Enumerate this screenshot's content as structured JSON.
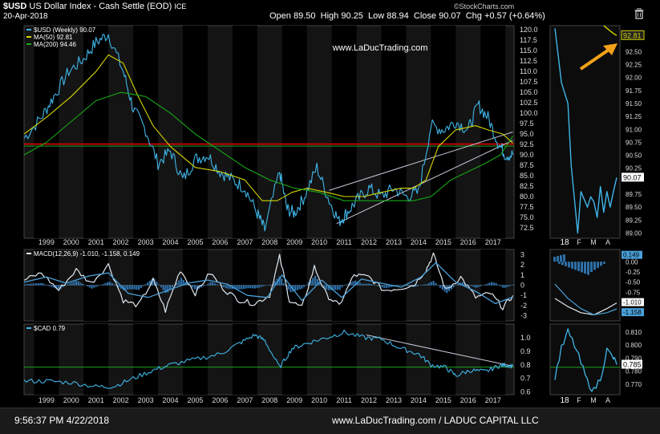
{
  "header": {
    "symbol": "$USD",
    "name": "US Dollar Index - Cash Settle (EOD)",
    "exchange": "ICE",
    "date": "20-Apr-2018",
    "open_label": "Open",
    "open": "89.50",
    "high_label": "High",
    "high": "90.25",
    "low_label": "Low",
    "low": "88.94",
    "close_label": "Close",
    "close": "90.07",
    "chg_label": "Chg",
    "chg": "+0.57 (+0.64%)",
    "source": "©StockCharts.com",
    "watermark": "www.LaDucTrading.com"
  },
  "legend": {
    "price": "$USD (Weekly) 90.07",
    "ma50": "MA(50) 92.81",
    "ma200": "MA(200) 94.46",
    "macd": "MACD(12,26,9) -1.010, -1.158, 0.149",
    "cad": "$CAD 0.79"
  },
  "footer": {
    "timestamp": "9:56:37 PM 4/22/2018",
    "credit": "www.LaDucTrading.com / LADUC CAPITAL LLC"
  },
  "colors": {
    "price": "#3fb6e8",
    "ma50": "#d6d600",
    "ma200": "#18a818",
    "resistance": "#e00000",
    "support": "#1fa01f",
    "trendline": "#c8c8d8",
    "arrow": "#f2a219"
  },
  "chart_data": [
    {
      "type": "line",
      "panel": "main-price",
      "years": [
        "1999",
        "2000",
        "2001",
        "2002",
        "2003",
        "2004",
        "2005",
        "2006",
        "2007",
        "2008",
        "2009",
        "2010",
        "2011",
        "2012",
        "2013",
        "2014",
        "2015",
        "2016",
        "2017",
        "2018"
      ],
      "y_ticks": [
        "120.0",
        "117.5",
        "115.0",
        "112.5",
        "110.0",
        "107.5",
        "105.0",
        "102.5",
        "100.0",
        "97.5",
        "95.0",
        "92.5",
        "90.0",
        "87.5",
        "85.0",
        "82.5",
        "80.0",
        "77.5",
        "75.0",
        "72.5"
      ],
      "ylim": [
        70,
        121
      ],
      "series": [
        {
          "name": "$USD (Weekly) 90.07",
          "x": [
            1998.6,
            1999.3,
            1999.8,
            2000.4,
            2001.0,
            2001.5,
            2002.0,
            2002.6,
            2003.0,
            2003.5,
            2004.0,
            2004.5,
            2005.0,
            2005.5,
            2006.0,
            2006.5,
            2007.0,
            2007.5,
            2008.0,
            2008.3,
            2008.9,
            2009.2,
            2009.5,
            2009.9,
            2010.4,
            2010.9,
            2011.3,
            2011.6,
            2012.0,
            2012.5,
            2013.0,
            2013.5,
            2014.0,
            2014.5,
            2015.0,
            2015.5,
            2016.0,
            2016.5,
            2016.9,
            2017.3,
            2017.7,
            2018.0,
            2018.3
          ],
          "y": [
            94,
            99,
            104,
            110,
            113,
            117,
            119,
            110,
            101,
            96,
            88,
            91,
            84,
            89,
            90,
            86,
            84,
            82,
            76,
            72,
            86,
            77,
            76,
            80,
            87,
            79,
            74,
            76,
            79,
            82,
            80,
            82,
            80,
            81,
            97,
            96,
            98,
            96,
            102,
            99,
            93,
            90,
            90
          ]
        },
        {
          "name": "MA(50) 92.81",
          "x": [
            1998.6,
            1999.5,
            2000.5,
            2001.5,
            2002.0,
            2002.6,
            2003.2,
            2003.8,
            2004.5,
            2005.5,
            2006.5,
            2007.5,
            2008.2,
            2008.8,
            2009.4,
            2010.0,
            2010.8,
            2011.5,
            2012.3,
            2013.0,
            2013.8,
            2014.3,
            2014.8,
            2015.3,
            2016.0,
            2016.8,
            2017.3,
            2017.9,
            2018.3
          ],
          "y": [
            95,
            99,
            104,
            110,
            114,
            112,
            104,
            97,
            92,
            87,
            86,
            84,
            79,
            79,
            81,
            82,
            81,
            80,
            80,
            81,
            82,
            82,
            84,
            92,
            96,
            97,
            96,
            95,
            92.8
          ]
        },
        {
          "name": "MA(200) 94.46",
          "x": [
            1998.6,
            1999.5,
            2000.5,
            2001.5,
            2002.5,
            2003.5,
            2004.5,
            2005.5,
            2006.5,
            2007.5,
            2008.5,
            2009.5,
            2010.5,
            2011.5,
            2012.5,
            2013.5,
            2014.3,
            2015.0,
            2015.8,
            2016.5,
            2017.2,
            2017.8,
            2018.3
          ],
          "y": [
            90,
            93,
            98,
            103,
            105,
            104,
            100,
            95,
            91,
            87,
            84,
            82,
            81,
            79,
            79,
            79,
            79,
            80,
            84,
            86,
            88,
            90,
            94.5
          ]
        }
      ],
      "annotations": [
        "www.LaDucTrading.com"
      ]
    },
    {
      "type": "line",
      "panel": "zoom-price",
      "x_ticks": [
        "18",
        "F",
        "M",
        "A"
      ],
      "y_ticks": [
        "92.81",
        "92.50",
        "92.25",
        "92.00",
        "91.75",
        "91.50",
        "91.25",
        "91.00",
        "90.75",
        "90.50",
        "90.25",
        "90.07",
        "89.75",
        "89.50",
        "89.25",
        "89.00"
      ],
      "ylim": [
        88.9,
        93.0
      ],
      "series": [
        {
          "name": "$USD",
          "x": [
            0,
            2,
            4,
            5,
            7,
            8,
            10,
            11,
            12,
            13,
            14,
            15,
            16,
            17,
            18,
            19
          ],
          "y": [
            92.95,
            91.9,
            91.5,
            90.3,
            89.0,
            89.8,
            89.5,
            89.7,
            89.6,
            89.3,
            89.9,
            89.4,
            89.8,
            89.5,
            89.8,
            90.07
          ]
        },
        {
          "name": "MA(50)",
          "x": [
            15,
            16,
            17,
            18,
            19
          ],
          "y": [
            93.0,
            92.95,
            92.9,
            92.85,
            92.81
          ]
        }
      ]
    },
    {
      "type": "line",
      "panel": "macd",
      "y_ticks": [
        "3",
        "2",
        "1",
        "0",
        "-1",
        "-2",
        "-3"
      ],
      "ylim": [
        -3.5,
        3.5
      ],
      "series": [
        {
          "name": "MACD",
          "x": [
            1998.6,
            1999.3,
            2000.0,
            2000.7,
            2001.3,
            2002.0,
            2002.6,
            2003.2,
            2003.8,
            2004.3,
            2004.9,
            2005.5,
            2006.1,
            2006.7,
            2007.3,
            2007.9,
            2008.5,
            2008.9,
            2009.3,
            2009.8,
            2010.3,
            2010.8,
            2011.3,
            2011.9,
            2012.5,
            2013.1,
            2013.7,
            2014.3,
            2014.8,
            2015.1,
            2015.6,
            2016.2,
            2016.8,
            2017.4,
            2017.9,
            2018.3
          ],
          "y": [
            0.5,
            1.2,
            -0.5,
            1.5,
            0.2,
            2.0,
            -1.5,
            -2.0,
            0.5,
            -2.5,
            1.5,
            -0.8,
            1.2,
            -0.5,
            -1.5,
            -1.8,
            -1.0,
            2.8,
            -1.5,
            -2.2,
            1.8,
            -1.0,
            -2.0,
            1.0,
            0.8,
            -0.5,
            -0.3,
            0.0,
            1.5,
            3.0,
            -0.5,
            0.8,
            -1.2,
            -0.8,
            -2.2,
            -1.01
          ]
        },
        {
          "name": "Signal",
          "x": [
            1998.6,
            1999.5,
            2000.3,
            2001.2,
            2002.0,
            2002.8,
            2003.6,
            2004.4,
            2005.2,
            2006.0,
            2006.8,
            2007.6,
            2008.4,
            2009.0,
            2009.8,
            2010.6,
            2011.4,
            2012.2,
            2013.0,
            2013.8,
            2014.6,
            2015.2,
            2016.0,
            2016.8,
            2017.6,
            2018.3
          ],
          "y": [
            0.3,
            0.8,
            0.2,
            0.9,
            1.2,
            -0.8,
            -1.2,
            -0.5,
            0.2,
            0.5,
            0.1,
            -1.0,
            -1.2,
            1.0,
            -1.5,
            0.5,
            -1.2,
            0.6,
            0.2,
            -0.2,
            0.8,
            2.2,
            0.3,
            -0.6,
            -1.8,
            -1.158
          ]
        }
      ]
    },
    {
      "type": "line",
      "panel": "cad",
      "y_ticks": [
        "1.0",
        "0.9",
        "0.8",
        "0.7",
        "0.6"
      ],
      "ylim": [
        0.58,
        1.1
      ],
      "series": [
        {
          "name": "$CAD 0.79",
          "x": [
            1998.6,
            1999.5,
            2000.5,
            2001.5,
            2002.2,
            2003.0,
            2003.8,
            2004.5,
            2005.5,
            2006.5,
            2007.3,
            2007.9,
            2008.3,
            2008.9,
            2009.4,
            2010.0,
            2010.8,
            2011.5,
            2012.3,
            2013.0,
            2013.8,
            2014.5,
            2015.0,
            2015.6,
            2016.0,
            2016.6,
            2017.2,
            2017.7,
            2018.0,
            2018.3
          ],
          "y": [
            0.68,
            0.68,
            0.67,
            0.64,
            0.64,
            0.7,
            0.76,
            0.8,
            0.84,
            0.88,
            0.96,
            1.02,
            0.98,
            0.78,
            0.92,
            0.96,
            1.0,
            1.04,
            1.0,
            0.99,
            0.92,
            0.88,
            0.8,
            0.78,
            0.72,
            0.76,
            0.75,
            0.79,
            0.8,
            0.79
          ]
        }
      ]
    },
    {
      "type": "line",
      "panel": "zoom-macd",
      "y_ticks": [
        "0.149",
        "0.00",
        "-0.25",
        "-0.50",
        "-0.75",
        "-1.010",
        "-1.158"
      ],
      "series": [
        {
          "name": "MACD",
          "x": [
            0,
            4,
            8,
            12,
            16,
            19
          ],
          "y": [
            -0.9,
            -1.1,
            -1.25,
            -1.3,
            -1.15,
            -1.01
          ]
        },
        {
          "name": "Signal",
          "x": [
            0,
            4,
            8,
            12,
            16,
            19
          ],
          "y": [
            -0.55,
            -0.9,
            -1.15,
            -1.3,
            -1.25,
            -1.158
          ]
        }
      ]
    },
    {
      "type": "line",
      "panel": "zoom-cad",
      "y_ticks": [
        "0.810",
        "0.800",
        "0.790",
        "0.785",
        "0.780",
        "0.770"
      ],
      "series": [
        {
          "name": "$CAD",
          "x": [
            0,
            2,
            4,
            6,
            8,
            10,
            12,
            14,
            16,
            18,
            19
          ],
          "y": [
            0.776,
            0.797,
            0.81,
            0.8,
            0.786,
            0.772,
            0.765,
            0.775,
            0.796,
            0.79,
            0.785
          ]
        }
      ]
    }
  ]
}
